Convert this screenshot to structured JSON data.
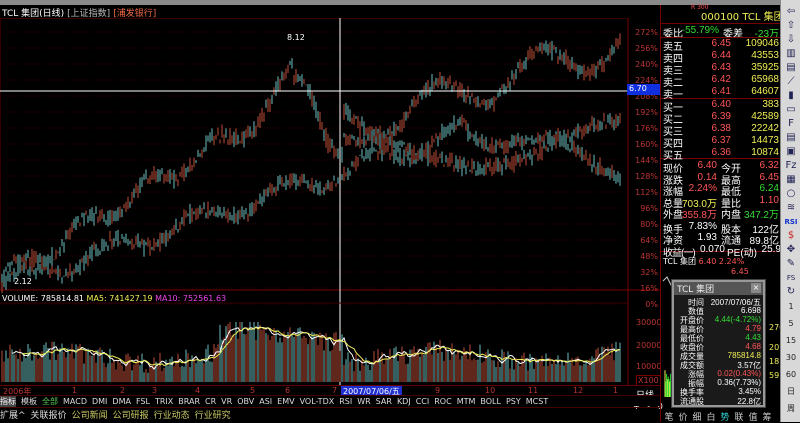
{
  "title": {
    "stock": "TCL 集团(日线)",
    "index": "[上证指数]",
    "broker": "[浦发银行]"
  },
  "price_axis": [
    "272%",
    "256%",
    "240%",
    "224%",
    "208%",
    "192%",
    "176%",
    "160%",
    "144%",
    "128%",
    "112%",
    "96%",
    "80%",
    "64%",
    "48%",
    "32%",
    "16%",
    "0%"
  ],
  "crosshair": {
    "price_label": "6.70"
  },
  "annotations": {
    "high": "8.12",
    "low": "2.12"
  },
  "volume": {
    "label": "VOLUME: 785814.81",
    "ma5": "MA5: 741427.19",
    "ma10": "MA10: 752561.63",
    "axis": [
      "30000",
      "20000",
      "10000"
    ],
    "unit": "X100"
  },
  "date_axis": {
    "labels": [
      "2006年",
      "1",
      "2",
      "3",
      "4",
      "5",
      "6",
      "7",
      "9",
      "10",
      "11",
      "12",
      "1"
    ],
    "cursor_date": "2007/07/06/五",
    "period": "日线",
    "controls": [
      "+",
      "-",
      "0"
    ]
  },
  "indicator_tabs": [
    "指标",
    "模板",
    "全部",
    "MACD",
    "DMI",
    "DMA",
    "FSL",
    "TRIX",
    "BRAR",
    "CR",
    "VR",
    "OBV",
    "ASI",
    "EMV",
    "VOL-TDX",
    "RSI",
    "WR",
    "SAR",
    "KDJ",
    "CCI",
    "ROC",
    "MTM",
    "BOLL",
    "PSY",
    "MCST"
  ],
  "bottom_tabs": [
    "扩展^",
    "关联报价",
    "公司新闻",
    "公司研报",
    "行业动态",
    "行业研究"
  ],
  "quote": {
    "code_badge": "R 300",
    "code": "000100",
    "name": "TCL 集团",
    "weibi_label": "委比",
    "weibi": "-55.79%",
    "weicha_label": "委差",
    "weicha": "-23万",
    "sell": [
      {
        "l": "卖五",
        "p": "6.45",
        "v": "109046"
      },
      {
        "l": "卖四",
        "p": "6.44",
        "v": "43553"
      },
      {
        "l": "卖三",
        "p": "6.43",
        "v": "35925"
      },
      {
        "l": "卖二",
        "p": "6.42",
        "v": "65968"
      },
      {
        "l": "卖一",
        "p": "6.41",
        "v": "64607"
      }
    ],
    "buy": [
      {
        "l": "买一",
        "p": "6.40",
        "v": "383"
      },
      {
        "l": "买二",
        "p": "6.39",
        "v": "42589"
      },
      {
        "l": "买三",
        "p": "6.38",
        "v": "22242"
      },
      {
        "l": "买四",
        "p": "6.37",
        "v": "14473"
      },
      {
        "l": "买五",
        "p": "6.36",
        "v": "10874"
      }
    ],
    "stats": [
      {
        "a": "现价",
        "b": "6.40",
        "c": "今开",
        "d": "6.32",
        "bc": "red",
        "dc": "red"
      },
      {
        "a": "涨跌",
        "b": "0.14",
        "c": "最高",
        "d": "6.45",
        "bc": "red",
        "dc": "red"
      },
      {
        "a": "涨幅",
        "b": "2.24%",
        "c": "最低",
        "d": "6.24",
        "bc": "red",
        "dc": "grn"
      },
      {
        "a": "总量",
        "b": "703.0万",
        "c": "量比",
        "d": "1.10",
        "bc": "yel",
        "dc": "red"
      },
      {
        "a": "外盘",
        "b": "355.8万",
        "c": "内盘",
        "d": "347.2万",
        "bc": "red",
        "dc": "grn"
      },
      {
        "a": "换手",
        "b": "7.83%",
        "c": "股本",
        "d": "122亿",
        "bc": "wht",
        "dc": "wht"
      },
      {
        "a": "净资",
        "b": "1.93",
        "c": "流通",
        "d": "89.8亿",
        "bc": "wht",
        "dc": "wht"
      },
      {
        "a": "收益(一)",
        "b": "0.070",
        "c": "PE(动)",
        "d": "25.9",
        "bc": "wht",
        "dc": "wht"
      }
    ],
    "mini_title": "TCL 集团",
    "mini_price": "6.40 2.24%",
    "mini_high": "6.45",
    "hidden_values": [
      "276",
      "207",
      "18",
      "59"
    ]
  },
  "popup": {
    "title": "TCL 集团",
    "close": "×",
    "rows": [
      {
        "k": "时间",
        "v": "2007/07/06/五",
        "c": "#fff"
      },
      {
        "k": "数值",
        "v": "6.698",
        "c": "#fff"
      },
      {
        "k": "开盘价",
        "v": "4.44(-4.72%)",
        "c": "#3d3"
      },
      {
        "k": "最高价",
        "v": "4.79",
        "c": "#f55"
      },
      {
        "k": "最低价",
        "v": "4.43",
        "c": "#3d3"
      },
      {
        "k": "收盘价",
        "v": "4.68",
        "c": "#f55"
      },
      {
        "k": "成交量",
        "v": "785814.8",
        "c": "#ee5"
      },
      {
        "k": "成交额",
        "v": "3.57亿",
        "c": "#fff"
      },
      {
        "k": "涨幅",
        "v": "0.02(0.43%)",
        "c": "#f55"
      },
      {
        "k": "振幅",
        "v": "0.36(7.73%)",
        "c": "#fff"
      },
      {
        "k": "换手率",
        "v": "3.45%",
        "c": "#fff"
      },
      {
        "k": "流通股",
        "v": "22.8亿",
        "c": "#fff"
      }
    ]
  },
  "right_panel_tabs": [
    "笔",
    "价",
    "细",
    "白",
    "势",
    "联",
    "值",
    "筹"
  ],
  "sidebar": {
    "icons": [
      "arrow-left-icon",
      "arrow-up-icon",
      "arrow-down-icon",
      "kline-icon",
      "bars-icon",
      "line-chart-icon",
      "candle-icon",
      "window-icon",
      "f10-icon",
      "doc-icon",
      "news-icon",
      "fz-icon",
      "calc-icon",
      "circle-icon",
      "wave-icon",
      "rsi-icon",
      "dollar-icon",
      "move-icon",
      "pencil-icon",
      "fs-icon",
      "refresh-icon"
    ],
    "labels": [
      "RSI",
      "FS",
      "1",
      "5",
      "15",
      "30",
      "60",
      "日",
      "周"
    ]
  },
  "colors": {
    "up": "#c0503a",
    "down": "#6cc0c0",
    "ma5": "#ffffff",
    "ma10": "#ee44ee",
    "axis": "#b33333",
    "highlight": "#2030d0"
  }
}
